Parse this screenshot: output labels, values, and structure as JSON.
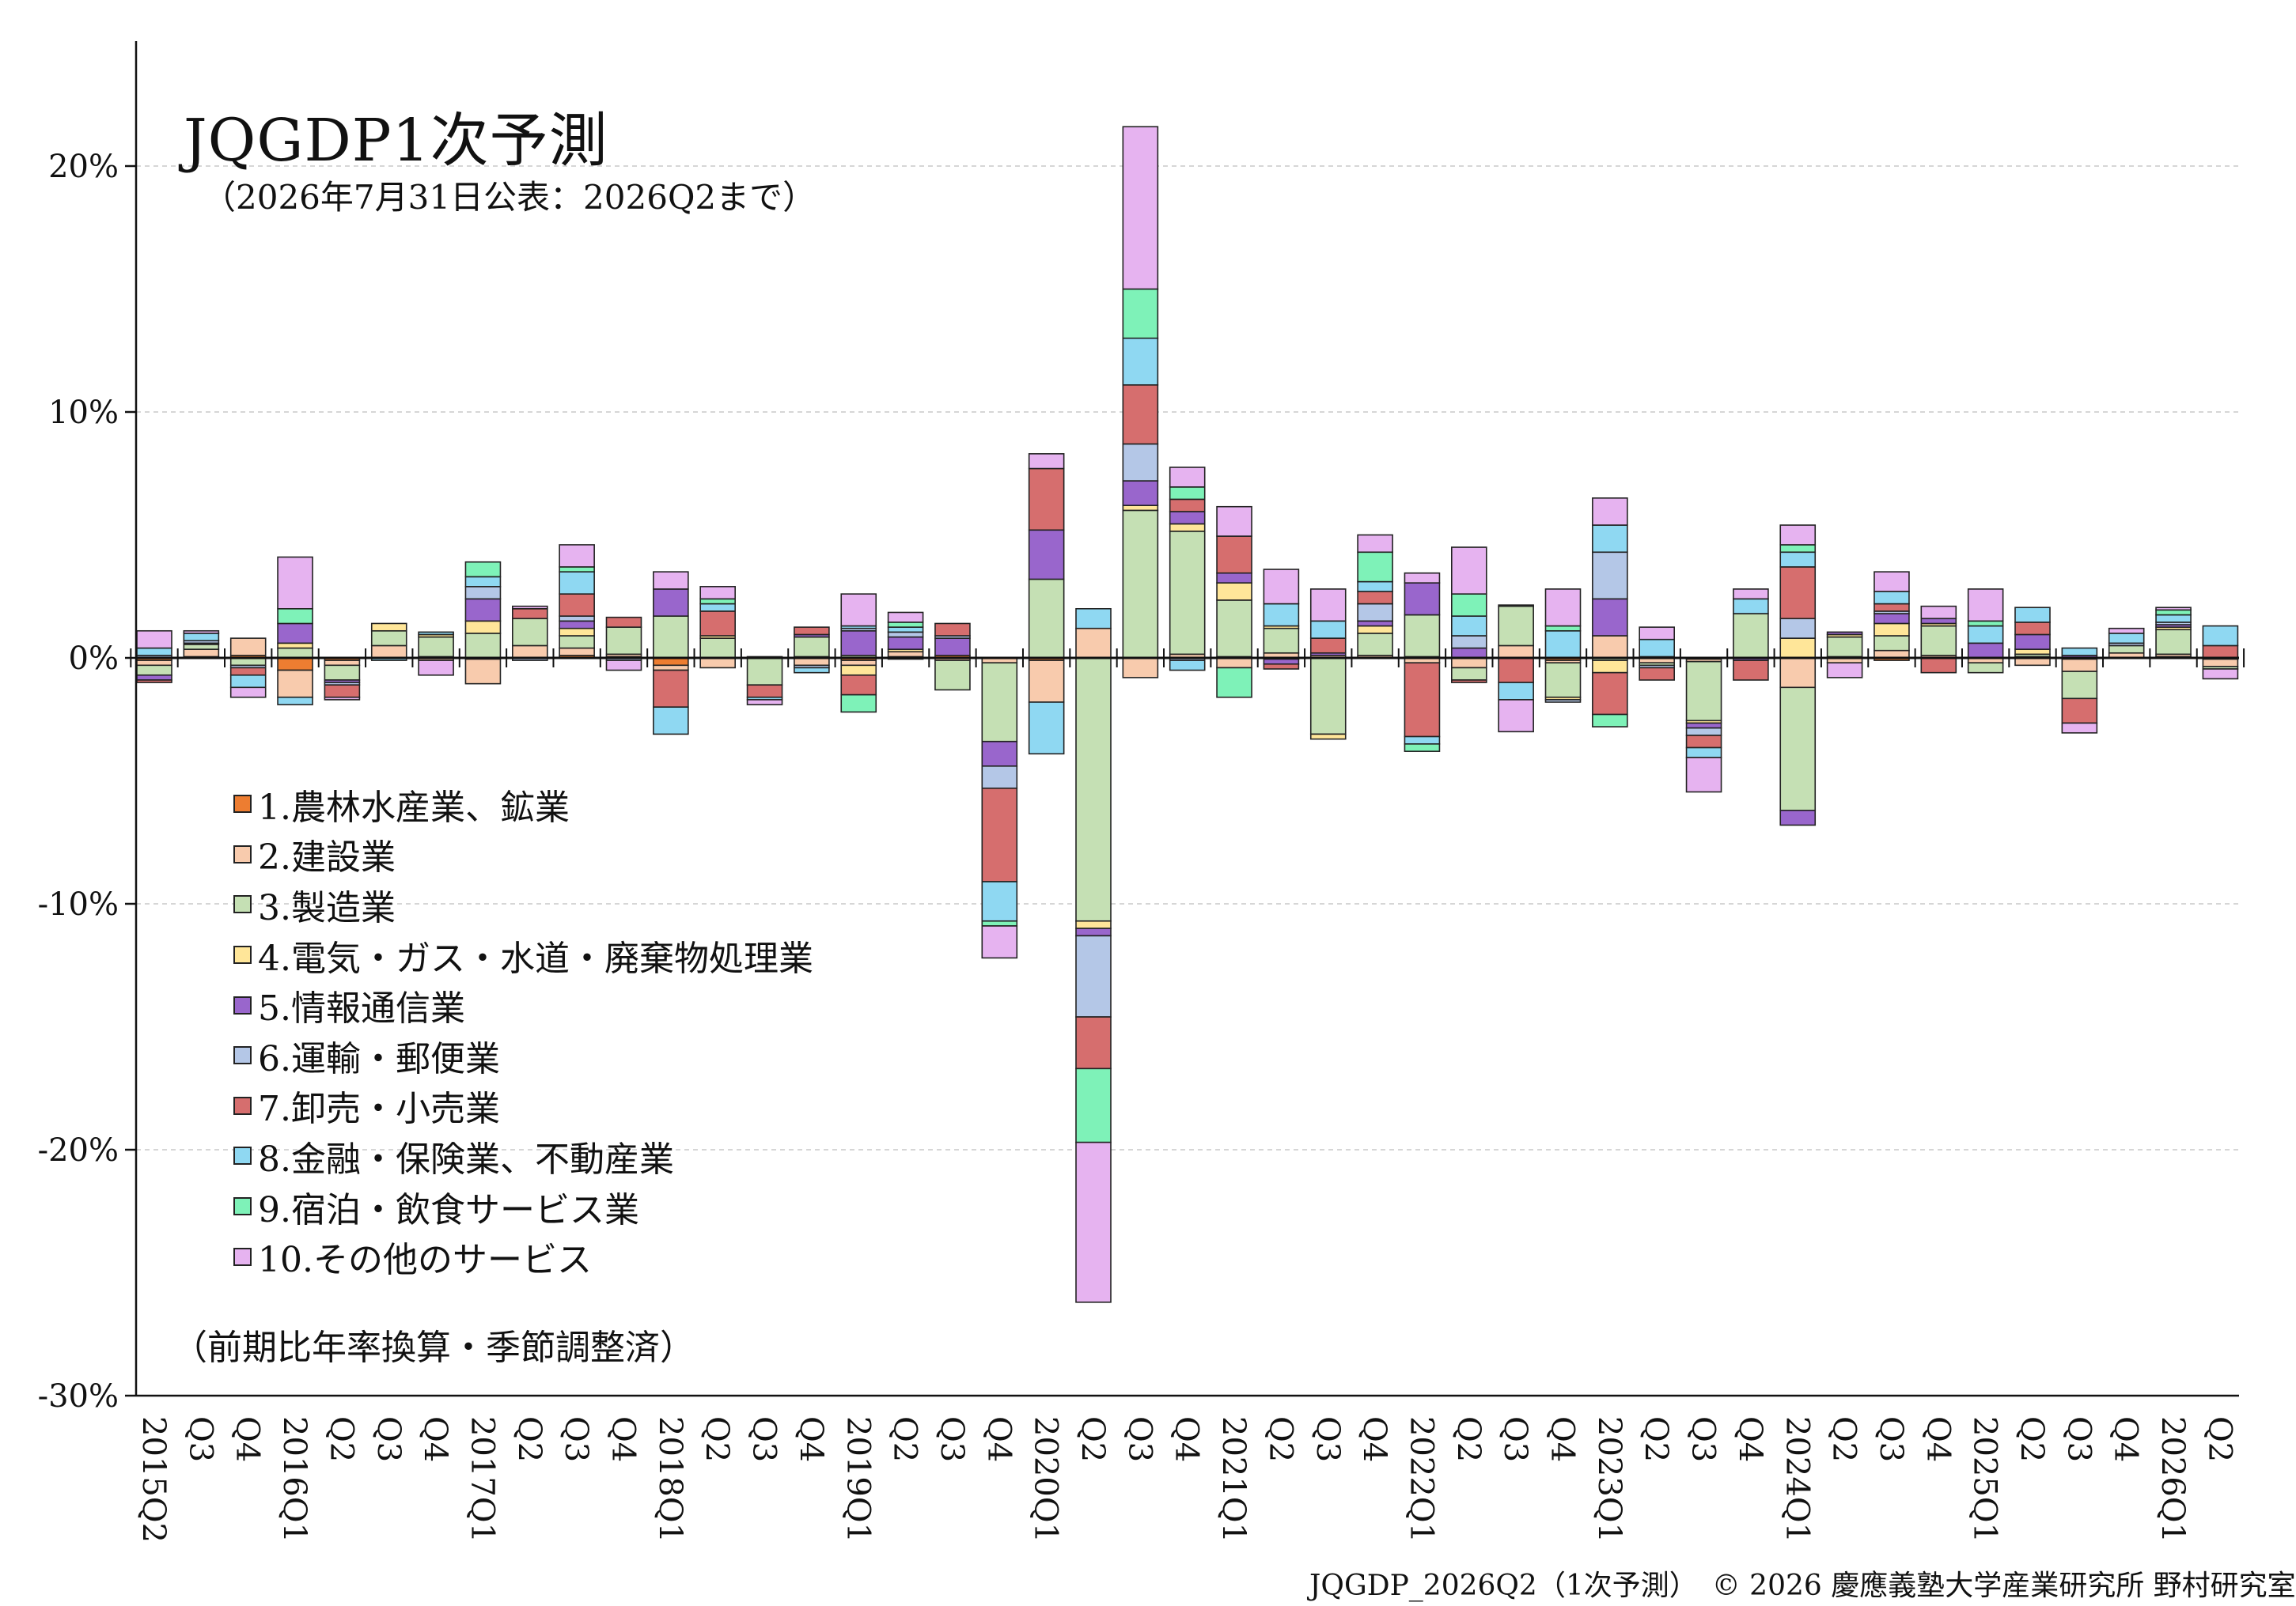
{
  "title": "JQGDP1次予測",
  "subtitle": "（2026年7月31日公表：2026Q2まで）",
  "note": "（前期比年率換算・季節調整済）",
  "footer": "JQGDP_2026Q2（1次予測）　© 2026 慶應義塾大学産業研究所 野村研究室",
  "chart_data": {
    "type": "bar",
    "stacked": true,
    "title": "JQGDP1次予測",
    "ylim": [
      -30,
      25
    ],
    "yticks": [
      {
        "value": 20,
        "label": "20%"
      },
      {
        "value": 10,
        "label": "10%"
      },
      {
        "value": 0,
        "label": "0%"
      },
      {
        "value": -10,
        "label": "-10%"
      },
      {
        "value": -20,
        "label": "-20%"
      },
      {
        "value": -30,
        "label": "-30%"
      }
    ],
    "grid": true,
    "legend_position": "left",
    "categories": [
      "2015Q2",
      "Q3",
      "Q4",
      "2016Q1",
      "Q2",
      "Q3",
      "Q4",
      "2017Q1",
      "Q2",
      "Q3",
      "Q4",
      "2018Q1",
      "Q2",
      "Q3",
      "Q4",
      "2019Q1",
      "Q2",
      "Q3",
      "Q4",
      "2020Q1",
      "Q2",
      "Q3",
      "Q4",
      "2021Q1",
      "Q2",
      "Q3",
      "Q4",
      "2022Q1",
      "Q2",
      "Q3",
      "Q4",
      "2023Q1",
      "Q2",
      "Q3",
      "Q4",
      "2024Q1",
      "Q2",
      "Q3",
      "Q4",
      "2025Q1",
      "Q2",
      "Q3",
      "Q4",
      "2026Q1",
      "Q2"
    ],
    "series": [
      {
        "name": "1.農林水産業、鉱業",
        "color": "#ED7D31",
        "values": [
          -0.1,
          0.05,
          0.1,
          -0.5,
          -0.1,
          0,
          0.05,
          -0.05,
          0,
          0.1,
          0.05,
          -0.3,
          0,
          0,
          0.05,
          -0.1,
          0.05,
          0.1,
          0,
          -0.1,
          0,
          0,
          0,
          0.05,
          -0.05,
          0,
          0,
          0.05,
          0,
          0,
          -0.1,
          0,
          0.05,
          -0.05,
          0,
          0,
          0.05,
          -0.1,
          0,
          0,
          0.05,
          -0.05,
          0,
          0.05,
          -0.05
        ]
      },
      {
        "name": "2.建設業",
        "color": "#F8CBAD",
        "values": [
          -0.2,
          0.3,
          0.7,
          -1.1,
          -0.2,
          0.5,
          -0.1,
          -1.0,
          0.5,
          0.3,
          0.1,
          -0.2,
          -0.4,
          0.05,
          -0.3,
          -0.2,
          0.2,
          -0.1,
          -0.2,
          -1.7,
          1.2,
          -0.8,
          0.15,
          -0.4,
          0.2,
          0.1,
          0.1,
          -0.2,
          -0.4,
          0.5,
          -0.1,
          0.9,
          -0.2,
          -0.1,
          0,
          -1.2,
          -0.2,
          0.3,
          0.1,
          -0.2,
          -0.3,
          -0.5,
          0.2,
          0.1,
          -0.3
        ]
      },
      {
        "name": "3.製造業",
        "color": "#C5E0B4",
        "values": [
          -0.4,
          0.2,
          -0.3,
          0.4,
          -0.6,
          0.6,
          0.8,
          1.0,
          1.1,
          0.5,
          1.1,
          1.7,
          0.8,
          -1.1,
          0.8,
          0.1,
          -0.05,
          -1.2,
          -3.2,
          3.2,
          -10.7,
          6.0,
          5.0,
          2.3,
          1.0,
          -3.1,
          0.9,
          1.7,
          -0.5,
          1.6,
          -1.4,
          -0.1,
          -0.1,
          -2.4,
          1.8,
          -5.0,
          0.8,
          0.6,
          1.2,
          -0.4,
          0.1,
          -1.1,
          0.3,
          1.0,
          -0.1
        ]
      },
      {
        "name": "4.電気・ガス・水道・廃棄物処理業",
        "color": "#FFE699",
        "values": [
          0,
          0.05,
          0,
          0.2,
          0,
          0.3,
          0.1,
          0.5,
          0,
          0.3,
          0,
          0,
          0.1,
          0,
          0,
          -0.4,
          0.1,
          0,
          0,
          0,
          -0.3,
          0.2,
          0.3,
          0.7,
          0.1,
          -0.2,
          0.3,
          0,
          0,
          0.05,
          -0.1,
          -0.5,
          0,
          -0.1,
          0,
          0.8,
          0.1,
          0.5,
          0.1,
          0,
          0.2,
          0,
          0,
          0.1,
          0
        ]
      },
      {
        "name": "5.情報通信業",
        "color": "#9966CC",
        "values": [
          -0.2,
          0,
          0,
          0.8,
          -0.1,
          0,
          0,
          0.9,
          0,
          0.3,
          0,
          1.1,
          0,
          0,
          0.1,
          1.0,
          0.5,
          0.7,
          -1.0,
          2.0,
          -0.3,
          1.0,
          0.5,
          0.4,
          -0.2,
          0.1,
          0.2,
          1.3,
          0.4,
          0,
          0,
          1.5,
          0,
          -0.2,
          -0.1,
          -0.6,
          0.1,
          0.4,
          0.2,
          0.6,
          0.6,
          0.1,
          0,
          0.1,
          0
        ]
      },
      {
        "name": "6.運輸・郵便業",
        "color": "#B4C7E7",
        "values": [
          0.1,
          0.1,
          -0.1,
          0,
          -0.1,
          0,
          0,
          0.5,
          -0.1,
          0.2,
          -0.1,
          0,
          0,
          0,
          -0.1,
          0.1,
          0.2,
          0.1,
          -0.9,
          0,
          -3.3,
          1.5,
          -0.1,
          0,
          0,
          0,
          0.7,
          0,
          0.5,
          0,
          -0.1,
          1.9,
          -0.1,
          -0.3,
          0,
          0.8,
          0,
          0.1,
          0,
          0,
          0,
          0,
          0.1,
          0.1,
          0
        ]
      },
      {
        "name": "7.卸売・小売業",
        "color": "#D66E6E",
        "values": [
          -0.1,
          0,
          -0.3,
          0,
          -0.5,
          0,
          0,
          0,
          0.4,
          0.9,
          0.4,
          -1.5,
          1.0,
          -0.5,
          0.3,
          -0.8,
          0,
          0.5,
          -3.8,
          2.5,
          -2.1,
          2.4,
          0.5,
          1.5,
          -0.2,
          0.6,
          0.5,
          -3.0,
          -0.1,
          -1.0,
          0,
          -1.7,
          -0.5,
          -0.5,
          -0.8,
          2.1,
          0,
          0.3,
          -0.6,
          0,
          0.5,
          -1.0,
          0,
          0,
          0.5
        ]
      },
      {
        "name": "8.金融・保険業、不動産業",
        "color": "#8FD8F2",
        "values": [
          0.3,
          0.3,
          -0.5,
          -0.3,
          0,
          -0.1,
          0.1,
          0.4,
          0,
          0.9,
          0,
          -1.1,
          0.3,
          -0.1,
          -0.2,
          0.1,
          0.2,
          0,
          -1.6,
          -2.1,
          0.8,
          1.9,
          -0.4,
          0,
          0.9,
          0.7,
          0.4,
          -0.3,
          0.8,
          -0.7,
          1.1,
          1.1,
          0.7,
          -0.4,
          0.6,
          0.6,
          0,
          0.5,
          0,
          0.7,
          0.6,
          0.3,
          0.4,
          0.3,
          0.8
        ]
      },
      {
        "name": "9.宿泊・飲食サービス業",
        "color": "#7EF2B8",
        "values": [
          0,
          0,
          0,
          0.6,
          0,
          0,
          0,
          0.6,
          0,
          0.2,
          0,
          0,
          0.2,
          0,
          0,
          -0.7,
          0.2,
          0,
          -0.2,
          0,
          -3.0,
          2.0,
          0.5,
          -1.2,
          0,
          0,
          1.2,
          -0.3,
          0.9,
          0,
          0.2,
          -0.5,
          0,
          0,
          0,
          0.3,
          0,
          0,
          0,
          0.2,
          0,
          0,
          0,
          0.2,
          0
        ]
      },
      {
        "name": "10.その他のサービス",
        "color": "#E6B3F0",
        "values": [
          0.7,
          0.1,
          -0.4,
          2.1,
          -0.1,
          0,
          -0.6,
          0,
          0.1,
          0.9,
          -0.4,
          0.7,
          0.5,
          -0.2,
          0,
          1.3,
          0.4,
          0,
          -1.3,
          0.6,
          -6.5,
          6.6,
          0.8,
          1.2,
          1.4,
          1.3,
          0.7,
          0.4,
          1.9,
          -1.3,
          1.5,
          1.1,
          0.5,
          -1.4,
          0.4,
          0.8,
          -0.6,
          0.8,
          0.5,
          1.3,
          0,
          -0.4,
          0.2,
          0.1,
          -0.4
        ]
      }
    ]
  }
}
